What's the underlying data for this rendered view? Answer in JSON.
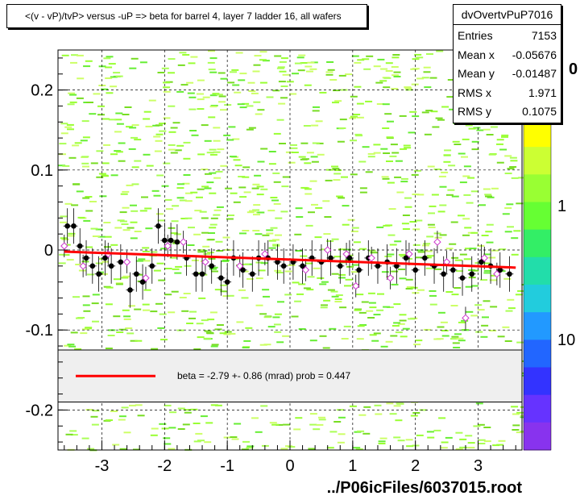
{
  "title": "<(v - vP)/tvP> versus  -uP => beta for barrel 4, layer 7 ladder 16, all wafers",
  "stats": {
    "name": "dvOvertvPuP7016",
    "entries_label": "Entries",
    "entries_value": "7153",
    "meanx_label": "Mean x",
    "meanx_value": "-0.05676",
    "meany_label": "Mean y",
    "meany_value": "-0.01487",
    "rmsx_label": "RMS x",
    "rmsx_value": "1.971",
    "rmsy_label": "RMS y",
    "rmsy_value": "0.1075"
  },
  "fit": {
    "text": "beta =   -2.79 +-  0.86 (mrad) prob = 0.447",
    "line_color": "#ff0000"
  },
  "file_label": "../P06icFiles/6037015.root",
  "colors": {
    "accent": "#ff0000",
    "marker_fill": "#000000",
    "open_marker": "#cc33cc",
    "error_bar": "#000000"
  },
  "chart_data": {
    "type": "scatter",
    "xlim": [
      -3.7,
      3.7
    ],
    "ylim": [
      -0.25,
      0.25
    ],
    "x_ticks": [
      -3,
      -2,
      -1,
      0,
      1,
      2,
      3
    ],
    "x_tick_labels": [
      "-3",
      "-2",
      "-1",
      "0",
      "1",
      "2",
      "3"
    ],
    "y_ticks": [
      -0.2,
      -0.1,
      0,
      0.1,
      0.2
    ],
    "y_tick_labels": [
      "-0.2",
      "-0.1",
      "0",
      "0.1",
      "0.2"
    ],
    "grid": true,
    "colorbar_labels": [
      "1",
      "10"
    ],
    "colorbar_label_values": [
      1,
      10
    ],
    "colorbar_top_label": "0",
    "fit_line": {
      "x": [
        -3.6,
        3.6
      ],
      "y": [
        -0.002,
        -0.022
      ]
    },
    "profile_filled": [
      [
        -3.55,
        0.03
      ],
      [
        -3.45,
        0.03
      ],
      [
        -3.35,
        0.005
      ],
      [
        -3.25,
        -0.01
      ],
      [
        -3.15,
        -0.02
      ],
      [
        -3.05,
        -0.03
      ],
      [
        -2.95,
        -0.01
      ],
      [
        -2.85,
        -0.02
      ],
      [
        -2.7,
        -0.015
      ],
      [
        -2.55,
        -0.05
      ],
      [
        -2.45,
        -0.03
      ],
      [
        -2.35,
        -0.04
      ],
      [
        -2.2,
        -0.02
      ],
      [
        -2.1,
        0.03
      ],
      [
        -2.0,
        0.012
      ],
      [
        -1.9,
        0.012
      ],
      [
        -1.8,
        0.01
      ],
      [
        -1.65,
        -0.01
      ],
      [
        -1.5,
        -0.03
      ],
      [
        -1.4,
        -0.03
      ],
      [
        -1.25,
        -0.02
      ],
      [
        -1.1,
        -0.035
      ],
      [
        -1.0,
        -0.04
      ],
      [
        -0.9,
        -0.01
      ],
      [
        -0.75,
        -0.025
      ],
      [
        -0.6,
        -0.03
      ],
      [
        -0.5,
        -0.01
      ],
      [
        -0.35,
        -0.01
      ],
      [
        -0.2,
        -0.015
      ],
      [
        -0.1,
        -0.02
      ],
      [
        0.05,
        -0.015
      ],
      [
        0.2,
        -0.02
      ],
      [
        0.35,
        -0.01
      ],
      [
        0.5,
        -0.015
      ],
      [
        0.65,
        -0.01
      ],
      [
        0.8,
        -0.02
      ],
      [
        0.95,
        -0.01
      ],
      [
        1.1,
        -0.025
      ],
      [
        1.25,
        -0.01
      ],
      [
        1.4,
        -0.02
      ],
      [
        1.55,
        -0.015
      ],
      [
        1.7,
        -0.02
      ],
      [
        1.85,
        -0.01
      ],
      [
        2.0,
        -0.025
      ],
      [
        2.15,
        -0.01
      ],
      [
        2.3,
        -0.02
      ],
      [
        2.45,
        -0.03
      ],
      [
        2.6,
        -0.025
      ],
      [
        2.75,
        -0.035
      ],
      [
        2.9,
        -0.03
      ],
      [
        3.05,
        -0.015
      ],
      [
        3.2,
        -0.02
      ],
      [
        3.35,
        -0.025
      ],
      [
        3.5,
        -0.03
      ]
    ],
    "profile_open": [
      [
        -3.6,
        0.005
      ],
      [
        -3.3,
        -0.02
      ],
      [
        -2.9,
        -0.005
      ],
      [
        -2.6,
        -0.015
      ],
      [
        -2.3,
        -0.035
      ],
      [
        -1.95,
        0.005
      ],
      [
        -1.7,
        0.01
      ],
      [
        -1.35,
        -0.015
      ],
      [
        -0.8,
        -0.02
      ],
      [
        -0.4,
        -0.005
      ],
      [
        0.25,
        -0.025
      ],
      [
        0.6,
        0.0
      ],
      [
        0.9,
        -0.005
      ],
      [
        1.05,
        -0.045
      ],
      [
        1.3,
        -0.01
      ],
      [
        1.6,
        -0.035
      ],
      [
        1.9,
        -0.005
      ],
      [
        2.35,
        0.01
      ],
      [
        2.5,
        -0.015
      ],
      [
        2.8,
        -0.085
      ],
      [
        3.1,
        -0.01
      ],
      [
        3.3,
        -0.03
      ]
    ],
    "fit_band": [
      -0.19,
      -0.125
    ]
  }
}
